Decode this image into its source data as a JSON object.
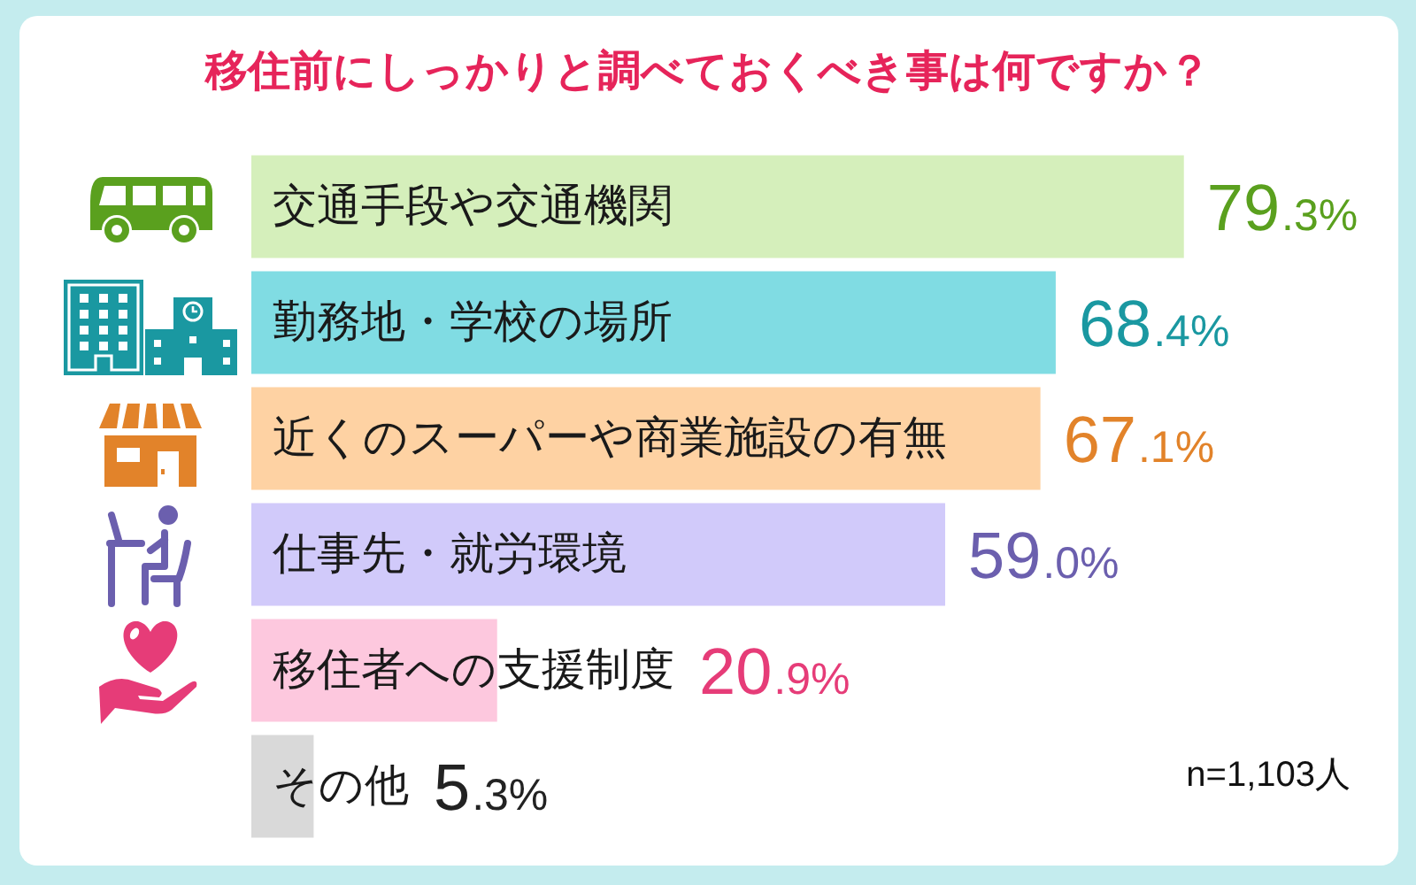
{
  "chart_data": {
    "type": "bar",
    "orientation": "horizontal",
    "title": "移住前にしっかりと調べておくべき事は何ですか？",
    "categories": [
      "交通手段や交通機関",
      "勤務地・学校の場所",
      "近くのスーパーや商業施設の有無",
      "仕事先・就労環境",
      "移住者への支援制度",
      "その他"
    ],
    "values": [
      79.3,
      68.4,
      67.1,
      59.0,
      20.9,
      5.3
    ],
    "colors": [
      "#d5efbb",
      "#80dce3",
      "#fed2a3",
      "#d1cafa",
      "#fdc8de",
      "#d9d9d9"
    ],
    "value_labels": [
      "79.3%",
      "68.4%",
      "67.1%",
      "59.0%",
      "20.9%",
      "5.3%"
    ],
    "tick_labels": "y",
    "annotations": [
      "n=1,103人"
    ]
  }
}
